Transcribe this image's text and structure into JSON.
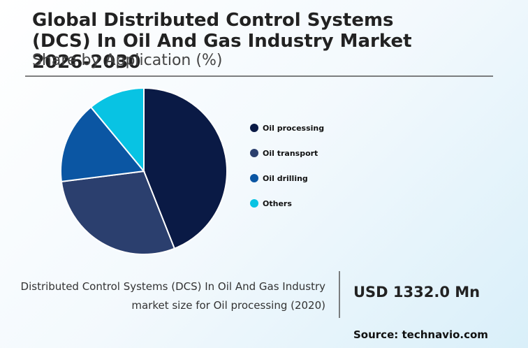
{
  "chart_data": {
    "type": "pie",
    "title": "Global Distributed Control Systems (DCS) In Oil And Gas Industry Market 2026-2030",
    "subtitle": "Share by Application (%)",
    "categories": [
      "Oil processing",
      "Oil transport",
      "Oil drilling",
      "Others"
    ],
    "values": [
      44,
      29,
      16,
      11
    ],
    "colors": [
      "#0a1a45",
      "#2b3f6e",
      "#0b56a3",
      "#08c3e3"
    ]
  },
  "footer": {
    "description": [
      "Distributed Control Systems (DCS) In Oil And Gas Industry",
      "market size for Oil processing (2020)"
    ],
    "value": "USD 1332.0 Mn",
    "source": "Source: technavio.com"
  }
}
